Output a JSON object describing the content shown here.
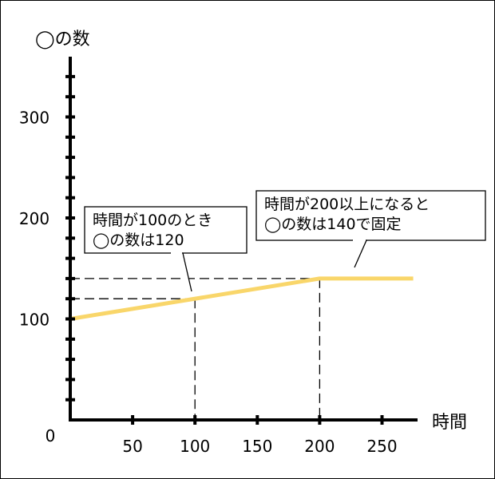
{
  "chart_data": {
    "type": "line",
    "ylabel": "◯の数",
    "xlabel": "時間",
    "origin_label": "0",
    "xlim": [
      0,
      280
    ],
    "ylim": [
      0,
      360
    ],
    "x_ticks": [
      50,
      100,
      150,
      200,
      250
    ],
    "y_ticks": [
      100,
      200,
      300
    ],
    "x_minor_step": 50,
    "y_minor_step": 20,
    "grid": false,
    "series": [
      {
        "color": "#f9d66a",
        "points": [
          [
            0,
            100
          ],
          [
            200,
            140
          ],
          [
            275,
            140
          ]
        ]
      }
    ],
    "reference_points": [
      {
        "x": 100,
        "y": 120
      },
      {
        "x": 200,
        "y": 140
      }
    ],
    "annotations": [
      {
        "lines": [
          "時間が100のとき",
          "◯の数は120"
        ],
        "x": 100,
        "y": 120
      },
      {
        "lines": [
          "時間が200以上になると",
          "◯の数は140で固定"
        ],
        "x": 230,
        "y": 140
      }
    ]
  }
}
